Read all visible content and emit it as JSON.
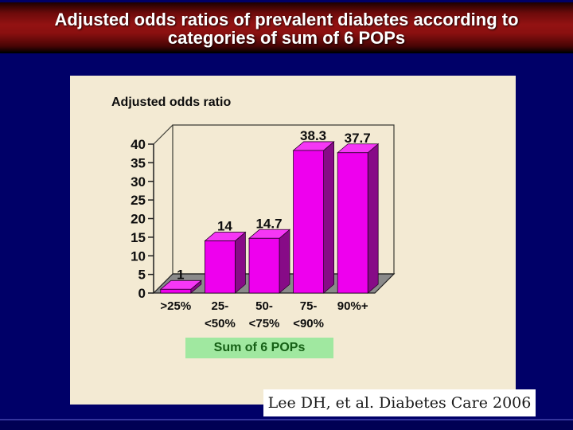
{
  "banner": {
    "title_line1": "Adjusted odds ratios of prevalent diabetes according to",
    "title_line2": "categories of sum of 6 POPs"
  },
  "chart_panel": {
    "axis_label": "Adjusted odds ratio",
    "category_box_label": "Sum of 6 POPs"
  },
  "citation": {
    "text": "Lee DH, et al. Diabetes Care 2006"
  },
  "colors": {
    "background": "#000068",
    "banner_red": "#931212",
    "panel_cream": "#f3ead3",
    "bar_front": "#ee00ee",
    "bar_side": "#870b87",
    "bar_top": "#f537f5",
    "floor_gray": "#8a8a8a",
    "category_box_green": "#a0e8a0",
    "category_box_text": "#156015",
    "citation_bg": "#ffffff"
  },
  "chart_data": {
    "type": "bar",
    "style": "3d-bar",
    "title": "Adjusted odds ratios of prevalent diabetes according to categories of sum of 6 POPs",
    "ylabel": "Adjusted odds ratio",
    "xlabel": "Sum of 6 POPs",
    "categories": [
      ">25%",
      "25-<50%",
      "50-<75%",
      "75-<90%",
      "90%+"
    ],
    "category_lines": [
      [
        ">25%",
        ""
      ],
      [
        "25-",
        "<50%"
      ],
      [
        "50-",
        "<75%"
      ],
      [
        "75-",
        "<90%"
      ],
      [
        "90%+",
        ""
      ]
    ],
    "values": [
      1,
      14,
      14.7,
      38.3,
      37.7
    ],
    "value_labels": [
      "1",
      "14",
      "14.7",
      "38.3",
      "37.7"
    ],
    "ylim": [
      0,
      40
    ],
    "ytick_step": 5,
    "grid": false,
    "legend": "none"
  }
}
